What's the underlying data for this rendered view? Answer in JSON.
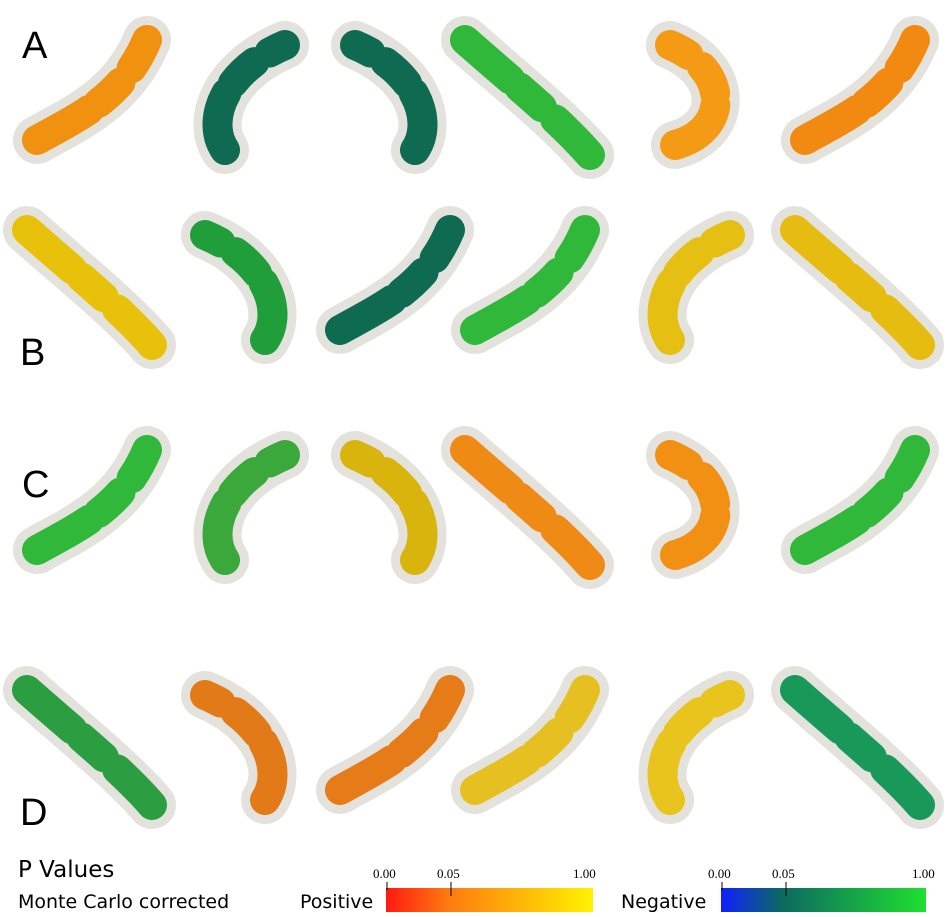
{
  "panels": {
    "labels": [
      "A",
      "B",
      "C",
      "D"
    ]
  },
  "legend": {
    "title": "P Values",
    "subtitle": "Monte Carlo corrected",
    "positive": {
      "label": "Positive",
      "ticks": [
        "0.00",
        "0.05",
        "1.00"
      ]
    },
    "negative": {
      "label": "Negative",
      "ticks": [
        "0.00",
        "0.05",
        "1.00"
      ]
    }
  }
}
